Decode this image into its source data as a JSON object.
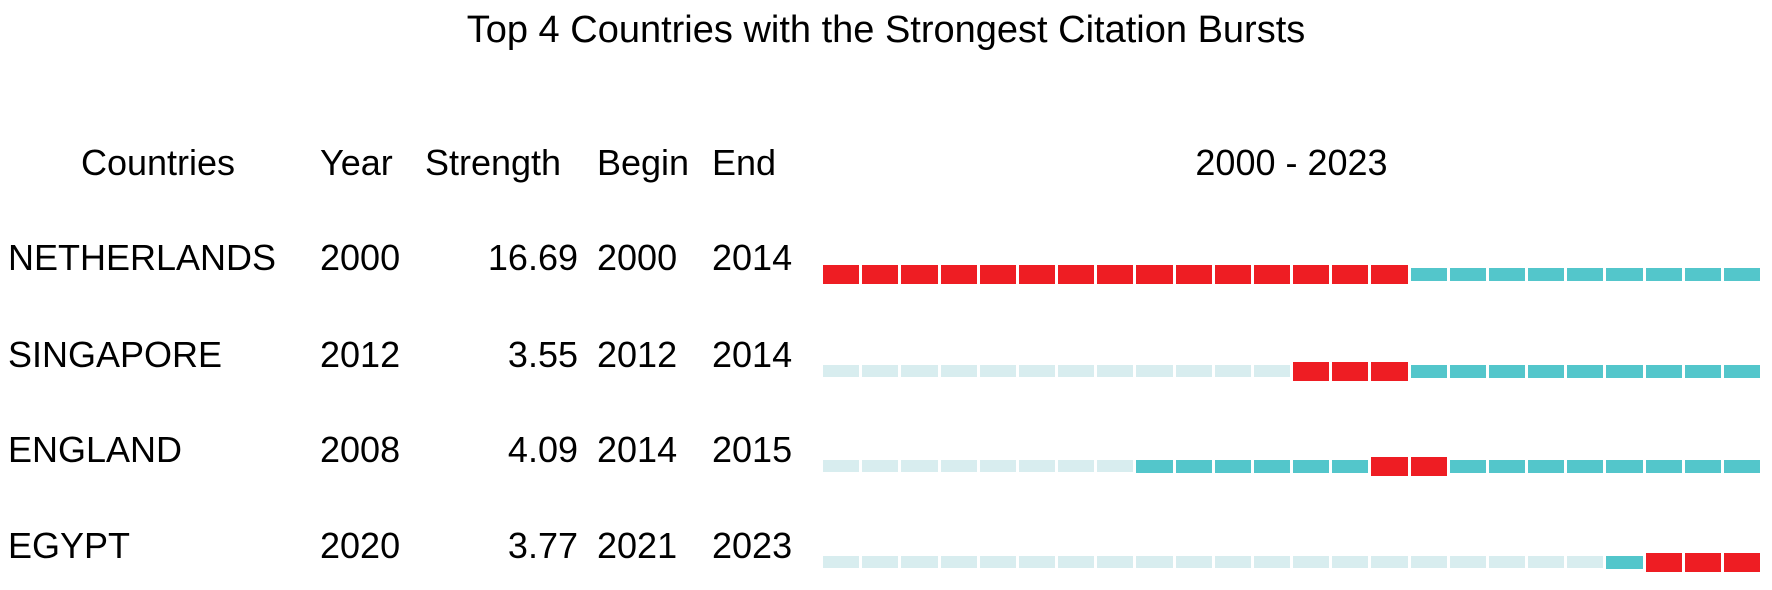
{
  "title": "Top 4 Countries with the Strongest Citation Bursts",
  "table": {
    "headers": {
      "countries": "Countries",
      "year": "Year",
      "strength": "Strength",
      "begin": "Begin",
      "end": "End",
      "timeline": "2000 - 2023"
    },
    "rows": [
      {
        "country": "NETHERLANDS",
        "year": "2000",
        "strength": "16.69",
        "begin": "2000",
        "end": "2014"
      },
      {
        "country": "SINGAPORE",
        "year": "2012",
        "strength": "3.55",
        "begin": "2012",
        "end": "2014"
      },
      {
        "country": "ENGLAND",
        "year": "2008",
        "strength": "4.09",
        "begin": "2014",
        "end": "2015"
      },
      {
        "country": "EGYPT",
        "year": "2020",
        "strength": "3.77",
        "begin": "2021",
        "end": "2023"
      }
    ]
  },
  "colors": {
    "burst": "#EE1D23",
    "active": "#53C6CB",
    "inactive": "#D8EDEF",
    "text": "#000000",
    "background": "#FFFFFF"
  },
  "chart_data": {
    "type": "table",
    "title": "Top 4 Countries with the Strongest Citation Bursts",
    "columns": [
      "Countries",
      "Year",
      "Strength",
      "Begin",
      "End",
      "2000 - 2023"
    ],
    "timeline_range": [
      2000,
      2023
    ],
    "timeline_years": 24,
    "legend_semantics": {
      "burst": "red segment: citation burst period (Begin to End)",
      "active": "teal segment: year present, no burst",
      "inactive": "pale segment: years before first appearance"
    },
    "rows": [
      {
        "country": "NETHERLANDS",
        "year": 2000,
        "strength": 16.69,
        "begin": 2000,
        "end": 2014,
        "segments": [
          "burst",
          "burst",
          "burst",
          "burst",
          "burst",
          "burst",
          "burst",
          "burst",
          "burst",
          "burst",
          "burst",
          "burst",
          "burst",
          "burst",
          "burst",
          "active",
          "active",
          "active",
          "active",
          "active",
          "active",
          "active",
          "active",
          "active"
        ]
      },
      {
        "country": "SINGAPORE",
        "year": 2012,
        "strength": 3.55,
        "begin": 2012,
        "end": 2014,
        "segments": [
          "inactive",
          "inactive",
          "inactive",
          "inactive",
          "inactive",
          "inactive",
          "inactive",
          "inactive",
          "inactive",
          "inactive",
          "inactive",
          "inactive",
          "burst",
          "burst",
          "burst",
          "active",
          "active",
          "active",
          "active",
          "active",
          "active",
          "active",
          "active",
          "active"
        ]
      },
      {
        "country": "ENGLAND",
        "year": 2008,
        "strength": 4.09,
        "begin": 2014,
        "end": 2015,
        "segments": [
          "inactive",
          "inactive",
          "inactive",
          "inactive",
          "inactive",
          "inactive",
          "inactive",
          "inactive",
          "active",
          "active",
          "active",
          "active",
          "active",
          "active",
          "burst",
          "burst",
          "active",
          "active",
          "active",
          "active",
          "active",
          "active",
          "active",
          "active"
        ]
      },
      {
        "country": "EGYPT",
        "year": 2020,
        "strength": 3.77,
        "begin": 2021,
        "end": 2023,
        "segments": [
          "inactive",
          "inactive",
          "inactive",
          "inactive",
          "inactive",
          "inactive",
          "inactive",
          "inactive",
          "inactive",
          "inactive",
          "inactive",
          "inactive",
          "inactive",
          "inactive",
          "inactive",
          "inactive",
          "inactive",
          "inactive",
          "inactive",
          "inactive",
          "active",
          "burst",
          "burst",
          "burst"
        ]
      }
    ]
  }
}
